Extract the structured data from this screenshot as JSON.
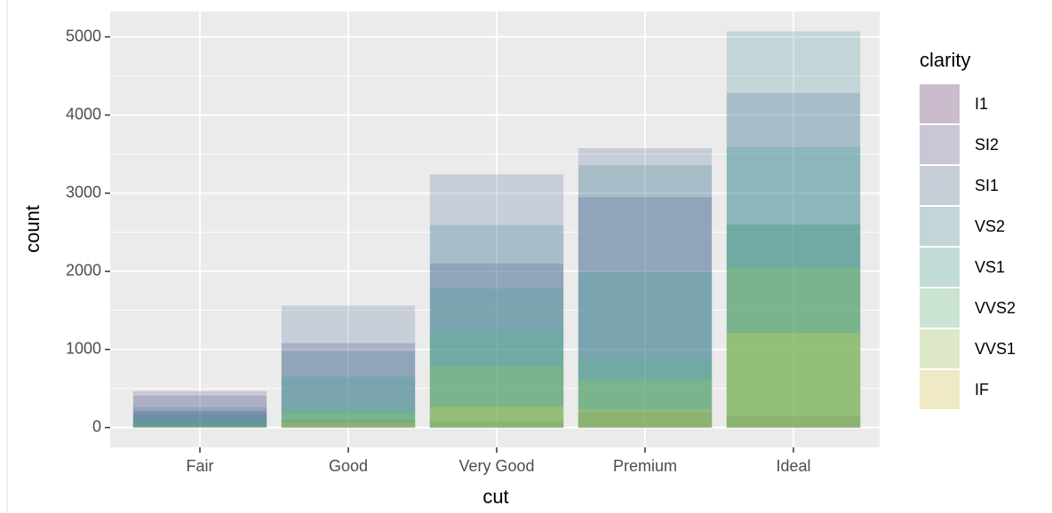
{
  "chart_data": {
    "type": "bar",
    "position": "identity",
    "opacity": 0.2,
    "x_label": "cut",
    "y_label": "count",
    "legend_title": "clarity",
    "legend": "right",
    "grid": true,
    "categories": [
      "Fair",
      "Good",
      "Very Good",
      "Premium",
      "Ideal"
    ],
    "series": [
      {
        "name": "I1",
        "color": "#440154",
        "values": [
          210,
          96,
          84,
          205,
          146
        ]
      },
      {
        "name": "SI2",
        "color": "#46337E",
        "values": [
          466,
          1081,
          2100,
          2949,
          2598
        ]
      },
      {
        "name": "SI1",
        "color": "#365C8D",
        "values": [
          408,
          1560,
          3240,
          3575,
          4282
        ]
      },
      {
        "name": "VS2",
        "color": "#277F8E",
        "values": [
          261,
          978,
          2591,
          3357,
          5071
        ]
      },
      {
        "name": "VS1",
        "color": "#1FA187",
        "values": [
          170,
          648,
          1775,
          1989,
          3589
        ]
      },
      {
        "name": "VVS2",
        "color": "#4AC16D",
        "values": [
          69,
          286,
          1235,
          870,
          2606
        ]
      },
      {
        "name": "VVS1",
        "color": "#9FDA3A",
        "values": [
          17,
          186,
          789,
          616,
          2047
        ]
      },
      {
        "name": "IF",
        "color": "#FDE725",
        "values": [
          9,
          71,
          268,
          230,
          1212
        ]
      }
    ],
    "ylim": [
      -253.55,
      5324.55
    ],
    "yticks": [
      0,
      1000,
      2000,
      3000,
      4000,
      5000
    ]
  }
}
